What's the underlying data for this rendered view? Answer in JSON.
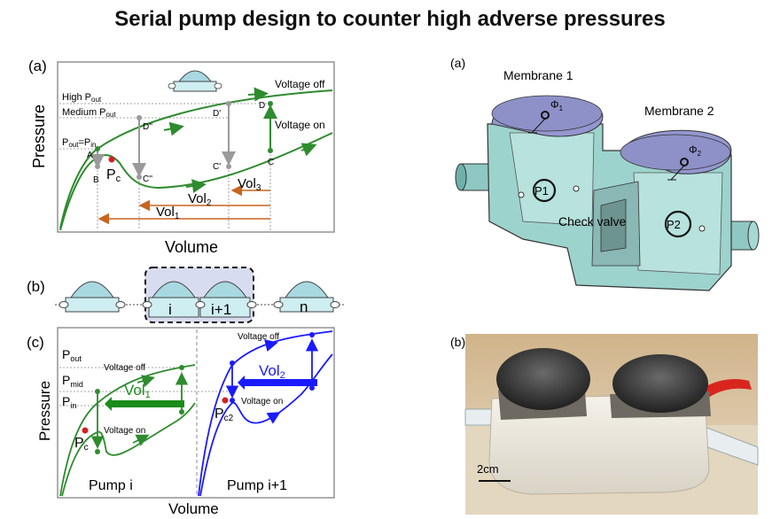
{
  "title": "Serial pump design to counter high adverse pressures",
  "panel_a": {
    "label": "(a)",
    "y_axis": "Pressure",
    "x_axis": "Volume",
    "levels": {
      "high": "High P",
      "high_sub": "out",
      "medium": "Medium P",
      "medium_sub": "out",
      "low": "P",
      "low_sub": "out",
      "low_eq": "=P",
      "low_eq_sub": "in"
    },
    "voltage_off": "Voltage off",
    "voltage_on": "Voltage on",
    "points": {
      "A": "A",
      "B": "B",
      "C": "C",
      "C2": "C''",
      "C1": "C'",
      "D": "D",
      "D1": "D'",
      "D2": "D''"
    },
    "pc": "P",
    "pc_sub": "c",
    "vol1": "Vol",
    "vol1_sub": "1",
    "vol2": "Vol",
    "vol2_sub": "2",
    "vol3": "Vol",
    "vol3_sub": "3"
  },
  "panel_b": {
    "label": "(b)",
    "pumps": [
      "i",
      "i+1",
      "n"
    ]
  },
  "panel_c": {
    "label": "(c)",
    "y_axis": "Pressure",
    "x_axis": "Volume",
    "p_out": "P",
    "p_out_sub": "out",
    "p_mid": "P",
    "p_mid_sub": "mid",
    "p_in": "P",
    "p_in_sub": "in",
    "voltage_off": "Voltage off",
    "voltage_on": "Voltage on",
    "vol1": "Vol",
    "vol1_sub": "1",
    "vol2": "Vol",
    "vol2_sub": "2",
    "pc": "P",
    "pc_sub": "c",
    "pc2": "P",
    "pc2_sub": "c2",
    "pump_i": "Pump i",
    "pump_i1": "Pump i+1"
  },
  "right_a": {
    "label": "(a)",
    "membrane1": "Membrane 1",
    "membrane2": "Membrane 2",
    "phi1": "Φ",
    "phi1_sub": "1",
    "phi2": "Φ",
    "phi2_sub": "2",
    "p1": "P1",
    "p2": "P2",
    "check_valve": "Check valve"
  },
  "right_b": {
    "label": "(b)",
    "scale": "2cm"
  }
}
